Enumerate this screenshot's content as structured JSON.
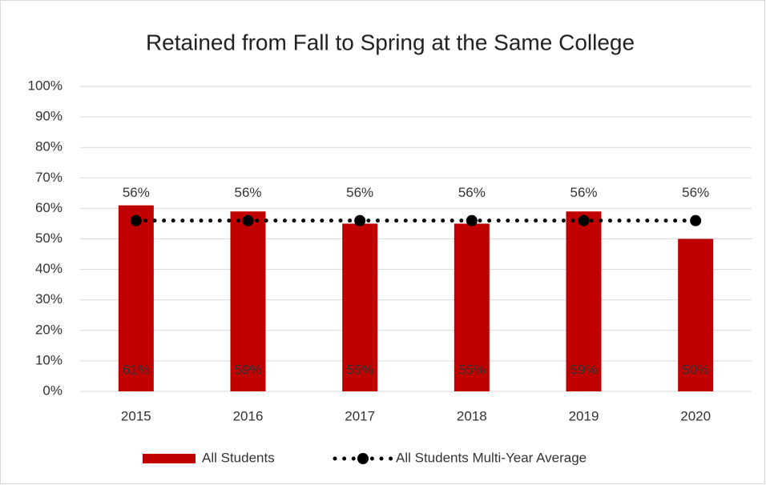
{
  "chart_data": {
    "type": "bar",
    "title": "Retained from Fall to Spring at the Same College",
    "categories": [
      "2015",
      "2016",
      "2017",
      "2018",
      "2019",
      "2020"
    ],
    "series": [
      {
        "name": "All Students",
        "type": "bar",
        "color": "#c00000",
        "values": [
          61,
          59,
          55,
          55,
          59,
          50
        ],
        "value_labels": [
          "61%",
          "59%",
          "55%",
          "55%",
          "59%",
          "50%"
        ]
      },
      {
        "name": "All Students Multi-Year Average",
        "type": "line",
        "color": "#000000",
        "values": [
          56,
          56,
          56,
          56,
          56,
          56
        ],
        "value_labels": [
          "56%",
          "56%",
          "56%",
          "56%",
          "56%",
          "56%"
        ]
      }
    ],
    "ylim": [
      0,
      100
    ],
    "yticks": [
      {
        "value": 0,
        "label": "0%"
      },
      {
        "value": 10,
        "label": "10%"
      },
      {
        "value": 20,
        "label": "20%"
      },
      {
        "value": 30,
        "label": "30%"
      },
      {
        "value": 40,
        "label": "40%"
      },
      {
        "value": 50,
        "label": "50%"
      },
      {
        "value": 60,
        "label": "60%"
      },
      {
        "value": 70,
        "label": "70%"
      },
      {
        "value": 80,
        "label": "80%"
      },
      {
        "value": 90,
        "label": "90%"
      },
      {
        "value": 100,
        "label": "100%"
      }
    ],
    "grid": true,
    "legend": "bottom"
  }
}
